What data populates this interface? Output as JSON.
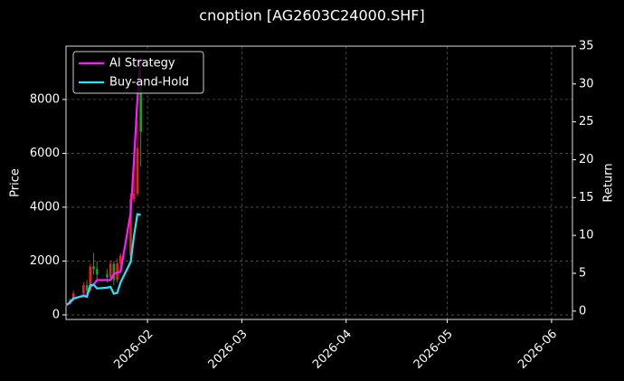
{
  "chart_data": {
    "type": "candlestick",
    "title": "cnoption [AG2603C24000.SHF]",
    "ylabel": "Price",
    "y2label": "Return",
    "x": [
      7,
      8,
      9,
      12,
      13,
      14,
      15,
      16,
      19,
      20,
      21,
      22,
      23,
      26,
      27,
      28,
      29
    ],
    "xlim": [
      6.8,
      157.2
    ],
    "xticks": [
      {
        "value": 31,
        "label": "2026-02"
      },
      {
        "value": 59,
        "label": "2026-03"
      },
      {
        "value": 90,
        "label": "2026-04"
      },
      {
        "value": 120,
        "label": "2026-05"
      },
      {
        "value": 151,
        "label": "2026-06"
      }
    ],
    "ohlc": {
      "open": [
        350,
        400,
        550,
        800,
        1100,
        900,
        1800,
        1700,
        1500,
        1400,
        1900,
        1300,
        1900,
        2200,
        4300,
        4500,
        8500
      ],
      "high": [
        420,
        600,
        900,
        1200,
        1300,
        1900,
        2300,
        2000,
        1700,
        2000,
        2000,
        2100,
        2300,
        4500,
        6200,
        7200,
        9200
      ],
      "low": [
        330,
        380,
        500,
        700,
        800,
        850,
        1500,
        1300,
        1200,
        1300,
        1100,
        1200,
        1700,
        2100,
        4200,
        4400,
        5500
      ],
      "close": [
        400,
        550,
        800,
        1100,
        900,
        1800,
        1700,
        1500,
        1400,
        1900,
        1300,
        1900,
        2200,
        4300,
        4500,
        6200,
        6800
      ],
      "up_color": "#e8211c",
      "down_color": "#1f9e1f"
    },
    "ylim": [
      -170,
      9980
    ],
    "yticks": [
      0,
      2000,
      4000,
      6000,
      8000
    ],
    "y2lim": [
      -1.1,
      35
    ],
    "y2ticks": [
      0,
      5,
      10,
      15,
      20,
      25,
      30,
      35
    ],
    "series": [
      {
        "name": "AI Strategy",
        "color": "#ff1aff",
        "axis": "y2",
        "values": [
          0.8,
          1.1,
          1.6,
          2.1,
          2.0,
          3.2,
          3.5,
          4.1,
          4.1,
          4.1,
          4.9,
          5.1,
          5.2,
          13,
          20,
          28,
          33.5
        ]
      },
      {
        "name": "Buy-and-Hold",
        "color": "#22e6f5",
        "axis": "y2",
        "values": [
          0.8,
          1.2,
          1.7,
          2.0,
          1.9,
          3.4,
          3.5,
          3.0,
          3.1,
          3.2,
          2.3,
          2.4,
          3.8,
          6.5,
          10,
          12.8,
          12.7
        ]
      }
    ],
    "grid": true,
    "legend": "upper left"
  }
}
